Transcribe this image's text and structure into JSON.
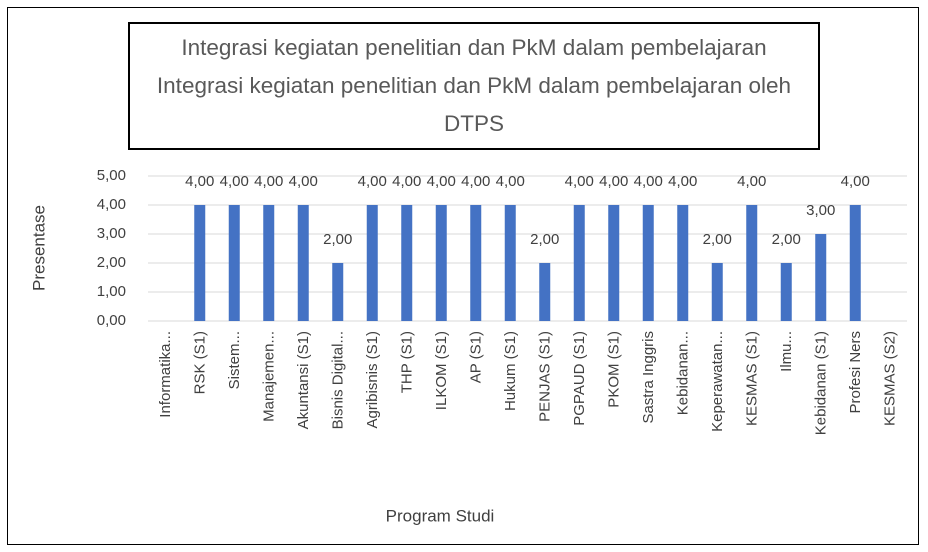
{
  "chart_data": {
    "type": "bar",
    "title": "Integrasi kegiatan penelitian dan PkM dalam pembelajaran Integrasi kegiatan penelitian dan PkM dalam pembelajaran oleh DTPS",
    "x_label": "Program Studi",
    "y_label": "Presentase",
    "categories": [
      "Informatika...",
      "RSK (S1)",
      "Sistem...",
      "Manajemen...",
      "Akuntansi (S1)",
      "Bisnis Digital...",
      "Agribisnis (S1)",
      "THP (S1)",
      "ILKOM (S1)",
      "AP (S1)",
      "Hukum (S1)",
      "PENJAS (S1)",
      "PGPAUD (S1)",
      "PKOM (S1)",
      "Sastra Inggris",
      "Kebidanan...",
      "Keperawatan...",
      "KESMAS (S1)",
      "Ilmu...",
      "Kebidanan (S1)",
      "Profesi Ners",
      "KESMAS (S2)"
    ],
    "values": [
      null,
      4,
      4,
      4,
      4,
      2,
      4,
      4,
      4,
      4,
      4,
      2,
      4,
      4,
      4,
      4,
      2,
      4,
      2,
      3,
      4,
      null
    ],
    "value_labels": [
      null,
      "4,00",
      "4,00",
      "4,00",
      "4,00",
      "2,00",
      "4,00",
      "4,00",
      "4,00",
      "4,00",
      "4,00",
      "2,00",
      "4,00",
      "4,00",
      "4,00",
      "4,00",
      "2,00",
      "4,00",
      "2,00",
      "3,00",
      "4,00",
      null
    ],
    "color": "#4472c4",
    "ylim": [
      0,
      5
    ],
    "yticks": [
      {
        "value": 0,
        "label": "0,00"
      },
      {
        "value": 1,
        "label": "1,00"
      },
      {
        "value": 2,
        "label": "2,00"
      },
      {
        "value": 3,
        "label": "3,00"
      },
      {
        "value": 4,
        "label": "4,00"
      },
      {
        "value": 5,
        "label": "5,00"
      }
    ],
    "grid": true
  }
}
